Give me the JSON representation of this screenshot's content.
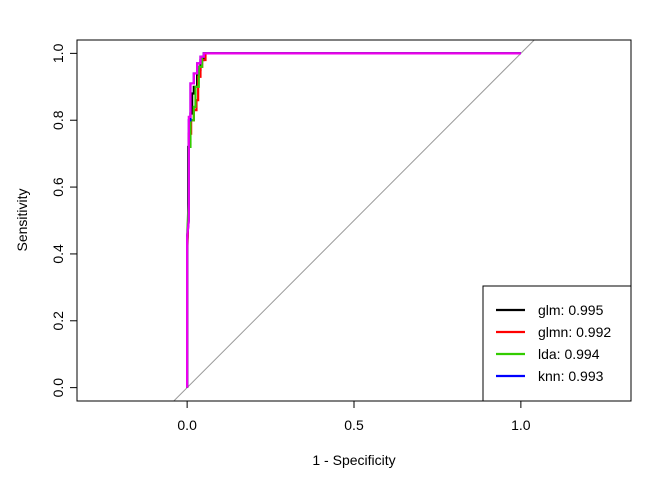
{
  "chart_data": {
    "type": "line",
    "xlabel": "1 - Specificity",
    "ylabel": "Sensitivity",
    "xlim": [
      -0.33,
      1.33
    ],
    "ylim": [
      -0.04,
      1.04
    ],
    "x_ticks": [
      {
        "value": 0.0,
        "label": "0.0"
      },
      {
        "value": 0.5,
        "label": "0.5"
      },
      {
        "value": 1.0,
        "label": "1.0"
      }
    ],
    "y_ticks": [
      {
        "value": 0.0,
        "label": "0.0"
      },
      {
        "value": 0.2,
        "label": "0.2"
      },
      {
        "value": 0.4,
        "label": "0.4"
      },
      {
        "value": 0.6,
        "label": "0.6"
      },
      {
        "value": 0.8,
        "label": "0.8"
      },
      {
        "value": 1.0,
        "label": "1.0"
      }
    ],
    "grid": false,
    "legend_position": "bottom-right",
    "reference_line": {
      "color": "#999999",
      "points": [
        [
          0,
          0
        ],
        [
          1,
          1
        ]
      ]
    },
    "series": [
      {
        "name": "glm",
        "legend": "glm: 0.995",
        "color": "#000000",
        "points": [
          [
            0,
            0
          ],
          [
            0,
            0.42
          ],
          [
            0.003,
            0.5
          ],
          [
            0.003,
            0.72
          ],
          [
            0.006,
            0.72
          ],
          [
            0.006,
            0.78
          ],
          [
            0.01,
            0.78
          ],
          [
            0.01,
            0.82
          ],
          [
            0.015,
            0.82
          ],
          [
            0.015,
            0.88
          ],
          [
            0.02,
            0.88
          ],
          [
            0.02,
            0.9
          ],
          [
            0.03,
            0.9
          ],
          [
            0.03,
            0.95
          ],
          [
            0.04,
            0.95
          ],
          [
            0.04,
            0.98
          ],
          [
            0.05,
            0.98
          ],
          [
            0.05,
            1.0
          ],
          [
            1.0,
            1.0
          ]
        ]
      },
      {
        "name": "glmn",
        "legend": "glmn: 0.992",
        "color": "#ff0000",
        "points": [
          [
            0,
            0
          ],
          [
            0,
            0.4
          ],
          [
            0.005,
            0.55
          ],
          [
            0.005,
            0.76
          ],
          [
            0.012,
            0.76
          ],
          [
            0.012,
            0.8
          ],
          [
            0.02,
            0.8
          ],
          [
            0.02,
            0.83
          ],
          [
            0.028,
            0.83
          ],
          [
            0.028,
            0.86
          ],
          [
            0.033,
            0.86
          ],
          [
            0.033,
            0.93
          ],
          [
            0.04,
            0.93
          ],
          [
            0.04,
            0.96
          ],
          [
            0.045,
            0.96
          ],
          [
            0.045,
            0.98
          ],
          [
            0.055,
            0.98
          ],
          [
            0.055,
            1.0
          ],
          [
            1.0,
            1.0
          ]
        ]
      },
      {
        "name": "lda",
        "legend": "lda: 0.994",
        "color": "#33cc00",
        "points": [
          [
            0,
            0
          ],
          [
            0,
            0.45
          ],
          [
            0.004,
            0.55
          ],
          [
            0.004,
            0.72
          ],
          [
            0.01,
            0.72
          ],
          [
            0.01,
            0.8
          ],
          [
            0.02,
            0.8
          ],
          [
            0.02,
            0.84
          ],
          [
            0.025,
            0.84
          ],
          [
            0.025,
            0.9
          ],
          [
            0.035,
            0.9
          ],
          [
            0.035,
            0.96
          ],
          [
            0.045,
            0.96
          ],
          [
            0.045,
            0.99
          ],
          [
            0.05,
            0.99
          ],
          [
            0.05,
            1.0
          ],
          [
            1.0,
            1.0
          ]
        ]
      },
      {
        "name": "knn",
        "legend": "knn: 0.993",
        "color": "#0000ff",
        "points": [
          [
            0,
            0
          ],
          [
            0,
            0.45
          ],
          [
            0.005,
            0.5
          ],
          [
            0.005,
            0.8
          ],
          [
            0.01,
            0.8
          ],
          [
            0.01,
            0.91
          ],
          [
            0.02,
            0.91
          ],
          [
            0.02,
            0.94
          ],
          [
            0.03,
            0.94
          ],
          [
            0.03,
            0.97
          ],
          [
            0.04,
            0.97
          ],
          [
            0.04,
            0.99
          ],
          [
            0.05,
            0.99
          ],
          [
            0.05,
            1.0
          ],
          [
            1.0,
            1.0
          ]
        ]
      },
      {
        "color": "#ee00ee",
        "points": [
          [
            0,
            0
          ],
          [
            0,
            0.45
          ],
          [
            0.005,
            0.5
          ],
          [
            0.005,
            0.81
          ],
          [
            0.01,
            0.81
          ],
          [
            0.01,
            0.91
          ],
          [
            0.02,
            0.91
          ],
          [
            0.02,
            0.94
          ],
          [
            0.03,
            0.94
          ],
          [
            0.03,
            0.97
          ],
          [
            0.04,
            0.97
          ],
          [
            0.04,
            0.99
          ],
          [
            0.05,
            0.99
          ],
          [
            0.05,
            1.0
          ],
          [
            1.0,
            1.0
          ]
        ]
      }
    ]
  }
}
